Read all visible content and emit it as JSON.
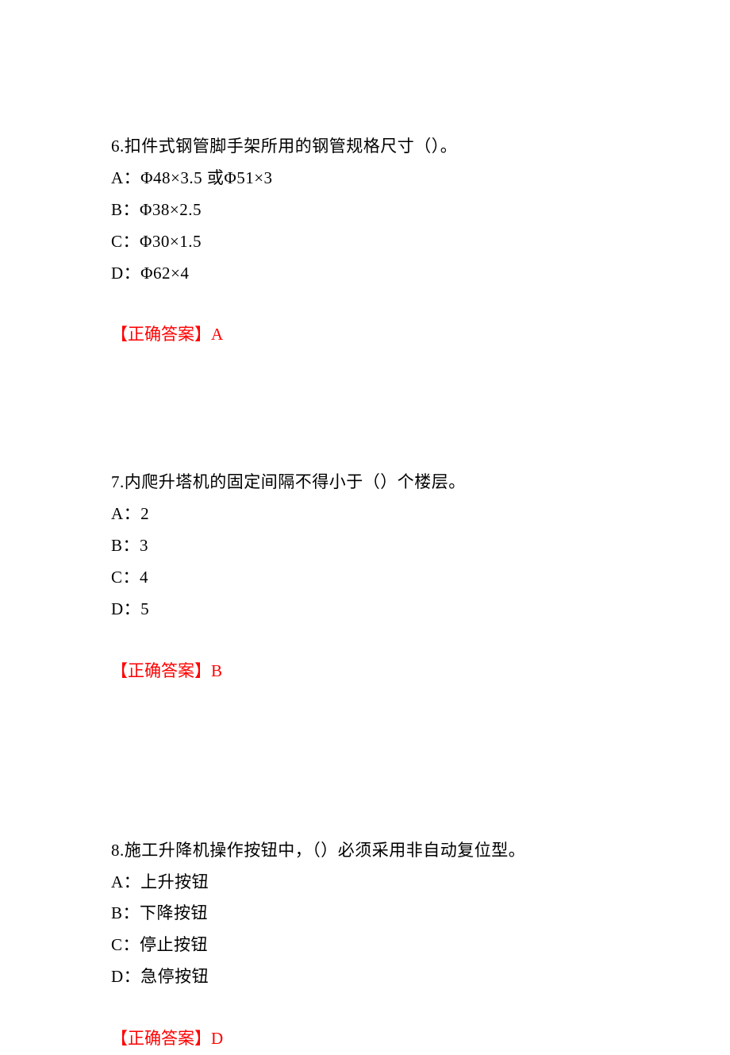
{
  "text_color": "#000000",
  "answer_color": "#ff0000",
  "background_color": "#ffffff",
  "font_family": "SimSun",
  "font_size_pt": 16,
  "answer_label": "【正确答案】",
  "questions": [
    {
      "number": "6",
      "stem": "6.扣件式钢管脚手架所用的钢管规格尺寸（）。",
      "options": {
        "A": "A：Φ48×3.5 或Φ51×3",
        "B": "B：Φ38×2.5",
        "C": "C：Φ30×1.5",
        "D": "D：Φ62×4"
      },
      "answer": "A"
    },
    {
      "number": "7",
      "stem": "7.内爬升塔机的固定间隔不得小于（）个楼层。",
      "options": {
        "A": "A：2",
        "B": "B：3",
        "C": "C：4",
        "D": "D：5"
      },
      "answer": "B"
    },
    {
      "number": "8",
      "stem": "8.施工升降机操作按钮中，（）必须采用非自动复位型。",
      "options": {
        "A": "A：上升按钮",
        "B": "B：下降按钮",
        "C": "C：停止按钮",
        "D": "D：急停按钮"
      },
      "answer": "D"
    }
  ]
}
